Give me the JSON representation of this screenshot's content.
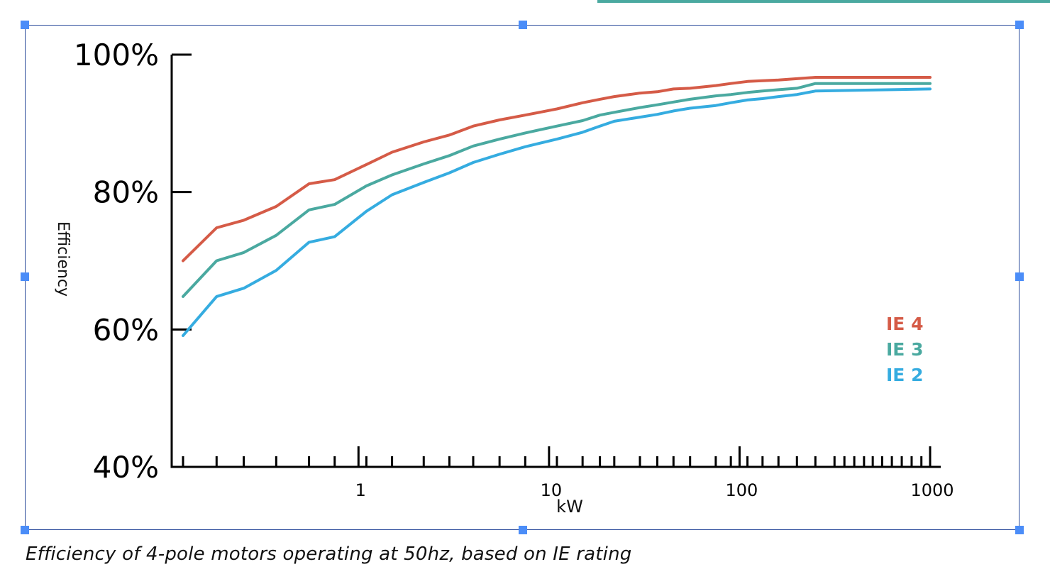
{
  "caption": "Efficiency of 4-pole motors operating at 50hz, based on IE rating",
  "colors": {
    "ie4": "#d55b47",
    "ie3": "#4aa9a0",
    "ie2": "#35ace0",
    "selection": "#4b8df8",
    "frame": "#2a4a9a",
    "top_bar": "#4aa9a0"
  },
  "chart_data": {
    "type": "line",
    "title": "",
    "xlabel": "kW",
    "ylabel": "Efficiency",
    "xscale": "log",
    "xlim": [
      0.12,
      1000
    ],
    "ylim": [
      40,
      100
    ],
    "y_ticks": [
      40,
      60,
      80,
      100
    ],
    "y_tick_labels": [
      "40%",
      "60%",
      "80%",
      "100%"
    ],
    "x_tick_labels": [
      "1",
      "10",
      "100",
      "1000"
    ],
    "x_label_ticks": [
      1,
      10,
      100,
      1000
    ],
    "x_minor_ticks": [
      0.12,
      0.18,
      0.25,
      0.37,
      0.55,
      0.75,
      1.1,
      1.5,
      2.2,
      3,
      4,
      5.5,
      7.5,
      11,
      15,
      18.5,
      22,
      30,
      37,
      45,
      55,
      75,
      90,
      110,
      132,
      160,
      200,
      250,
      315,
      355,
      400,
      450,
      500,
      560,
      630,
      710,
      800,
      900
    ],
    "grid": false,
    "legend_position": "right",
    "x": [
      0.12,
      0.18,
      0.25,
      0.37,
      0.55,
      0.75,
      1.1,
      1.5,
      2.2,
      3,
      4,
      5.5,
      7.5,
      11,
      15,
      18.5,
      22,
      30,
      37,
      45,
      55,
      75,
      90,
      110,
      132,
      160,
      200,
      250,
      1000
    ],
    "series": [
      {
        "name": "IE 4",
        "color": "#d55b47",
        "values": [
          70.0,
          74.8,
          75.9,
          77.9,
          81.2,
          81.8,
          84.0,
          85.8,
          87.3,
          88.3,
          89.6,
          90.5,
          91.2,
          92.1,
          93.0,
          93.5,
          93.9,
          94.4,
          94.6,
          95.0,
          95.1,
          95.5,
          95.8,
          96.1,
          96.2,
          96.3,
          96.5,
          96.7,
          96.7
        ]
      },
      {
        "name": "IE 3",
        "color": "#4aa9a0",
        "values": [
          64.8,
          70.0,
          71.2,
          73.7,
          77.4,
          78.2,
          80.9,
          82.5,
          84.1,
          85.3,
          86.7,
          87.7,
          88.6,
          89.6,
          90.4,
          91.2,
          91.6,
          92.3,
          92.7,
          93.1,
          93.5,
          94.0,
          94.2,
          94.5,
          94.7,
          94.9,
          95.1,
          95.8,
          95.8
        ]
      },
      {
        "name": "IE 2",
        "color": "#35ace0",
        "values": [
          59.1,
          64.8,
          66.0,
          68.6,
          72.7,
          73.5,
          77.2,
          79.6,
          81.4,
          82.8,
          84.3,
          85.5,
          86.6,
          87.7,
          88.7,
          89.6,
          90.3,
          90.9,
          91.3,
          91.8,
          92.2,
          92.6,
          93.0,
          93.4,
          93.6,
          93.9,
          94.2,
          94.7,
          95.0
        ]
      }
    ]
  }
}
